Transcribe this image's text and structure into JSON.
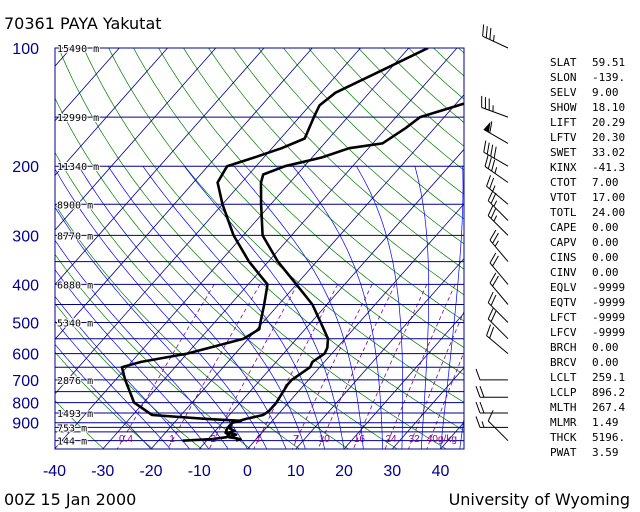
{
  "header": {
    "title": "70361 PAYA Yakutat",
    "date": "00Z 15 Jan 2000",
    "source": "University of Wyoming"
  },
  "colors": {
    "isobar": "#00008b",
    "isotherm": "#00008b",
    "dry_adiabat": "#008000",
    "moist_adiabat": "#0000ff",
    "mixing_ratio": "#8b008b",
    "sounding": "#000000",
    "axis_label": "#00008b"
  },
  "indices": [
    {
      "name": "SLAT",
      "value": "59.51"
    },
    {
      "name": "SLON",
      "value": "-139."
    },
    {
      "name": "SELV",
      "value": "9.00"
    },
    {
      "name": "SHOW",
      "value": "18.10"
    },
    {
      "name": "LIFT",
      "value": "20.29"
    },
    {
      "name": "LFTV",
      "value": "20.30"
    },
    {
      "name": "SWET",
      "value": "33.02"
    },
    {
      "name": "KINX",
      "value": "-41.3"
    },
    {
      "name": "CTOT",
      "value": "7.00"
    },
    {
      "name": "VTOT",
      "value": "17.00"
    },
    {
      "name": "TOTL",
      "value": "24.00"
    },
    {
      "name": "CAPE",
      "value": "0.00"
    },
    {
      "name": "CAPV",
      "value": "0.00"
    },
    {
      "name": "CINS",
      "value": "0.00"
    },
    {
      "name": "CINV",
      "value": "0.00"
    },
    {
      "name": "EQLV",
      "value": "-9999"
    },
    {
      "name": "EQTV",
      "value": "-9999"
    },
    {
      "name": "LFCT",
      "value": "-9999"
    },
    {
      "name": "LFCV",
      "value": "-9999"
    },
    {
      "name": "BRCH",
      "value": "0.00"
    },
    {
      "name": "BRCV",
      "value": "0.00"
    },
    {
      "name": "LCLT",
      "value": "259.1"
    },
    {
      "name": "LCLP",
      "value": "896.2"
    },
    {
      "name": "MLTH",
      "value": "267.4"
    },
    {
      "name": "MLMR",
      "value": "1.49"
    },
    {
      "name": "THCK",
      "value": "5196."
    },
    {
      "name": "PWAT",
      "value": "3.59"
    }
  ],
  "chart_data": {
    "type": "line",
    "chart_kind": "skew-T log-P sounding",
    "title": "70361 PAYA Yakutat",
    "pressure_axis": {
      "unit": "hPa",
      "scale": "log",
      "range": [
        1050,
        100
      ],
      "tick_labels": [
        "100",
        "200",
        "300",
        "400",
        "500",
        "600",
        "700",
        "800",
        "900"
      ]
    },
    "temperature_axis": {
      "unit": "°C",
      "range": [
        -40,
        45
      ],
      "tick_labels": [
        "-40",
        "-30",
        "-20",
        "-10",
        "0",
        "10",
        "20",
        "30",
        "40"
      ]
    },
    "isobar_levels": [
      100,
      150,
      200,
      250,
      300,
      350,
      400,
      450,
      500,
      550,
      600,
      650,
      700,
      750,
      800,
      850,
      900,
      925,
      950,
      1000,
      1050
    ],
    "height_labels": [
      {
        "p": 100,
        "text": "15490 m"
      },
      {
        "p": 150,
        "text": "12990 m"
      },
      {
        "p": 200,
        "text": "11340 m"
      },
      {
        "p": 250,
        "text": "8900 m"
      },
      {
        "p": 300,
        "text": "8770 m"
      },
      {
        "p": 400,
        "text": "6880 m"
      },
      {
        "p": 500,
        "text": "5340 m"
      },
      {
        "p": 700,
        "text": "2876 m"
      },
      {
        "p": 850,
        "text": "1493 m"
      },
      {
        "p": 925,
        "text": "753 m"
      },
      {
        "p": 1000,
        "text": "144 m"
      }
    ],
    "mixing_ratio_labels": [
      {
        "value": 0.4,
        "text": "0.4"
      },
      {
        "value": 1,
        "text": "1"
      },
      {
        "value": 2,
        "text": "2"
      },
      {
        "value": 4,
        "text": "4"
      },
      {
        "value": 7,
        "text": "7"
      },
      {
        "value": 10,
        "text": "10"
      },
      {
        "value": 16,
        "text": "16"
      },
      {
        "value": 24,
        "text": "24"
      },
      {
        "value": 32,
        "text": "32"
      },
      {
        "value": 40,
        "text": "40g/kg"
      }
    ],
    "series": [
      {
        "role": "temperature",
        "points": [
          {
            "p": 1000,
            "t": -3.9
          },
          {
            "p": 990,
            "t": -3.3
          },
          {
            "p": 980,
            "t": -6.0
          },
          {
            "p": 965,
            "t": -5.0
          },
          {
            "p": 955,
            "t": -7.0
          },
          {
            "p": 945,
            "t": -6.0
          },
          {
            "p": 930,
            "t": -7.5
          },
          {
            "p": 900,
            "t": -8.0
          },
          {
            "p": 880,
            "t": -5.8
          },
          {
            "p": 860,
            "t": -3.0
          },
          {
            "p": 840,
            "t": -2.5
          },
          {
            "p": 800,
            "t": -2.5
          },
          {
            "p": 760,
            "t": -3.0
          },
          {
            "p": 720,
            "t": -3.5
          },
          {
            "p": 700,
            "t": -3.5
          },
          {
            "p": 650,
            "t": -2.0
          },
          {
            "p": 630,
            "t": -2.5
          },
          {
            "p": 600,
            "t": -1.5
          },
          {
            "p": 580,
            "t": -2.0
          },
          {
            "p": 550,
            "t": -3.5
          },
          {
            "p": 500,
            "t": -8.0
          },
          {
            "p": 450,
            "t": -13.0
          },
          {
            "p": 400,
            "t": -20.0
          },
          {
            "p": 350,
            "t": -28.0
          },
          {
            "p": 300,
            "t": -36.0
          },
          {
            "p": 250,
            "t": -42.0
          },
          {
            "p": 220,
            "t": -46.0
          },
          {
            "p": 210,
            "t": -47.0
          },
          {
            "p": 200,
            "t": -44.0
          },
          {
            "p": 190,
            "t": -38.0
          },
          {
            "p": 180,
            "t": -34.0
          },
          {
            "p": 175,
            "t": -28.0
          },
          {
            "p": 160,
            "t": -26.0
          },
          {
            "p": 150,
            "t": -25.0
          },
          {
            "p": 138,
            "t": -18.0
          },
          {
            "p": 130,
            "t": -17.0
          },
          {
            "p": 100,
            "t": -8.0
          }
        ]
      },
      {
        "role": "dewpoint",
        "points": [
          {
            "p": 1000,
            "t": -15.0
          },
          {
            "p": 990,
            "t": -9.0
          },
          {
            "p": 980,
            "t": -6.5
          },
          {
            "p": 965,
            "t": -6.5
          },
          {
            "p": 955,
            "t": -7.5
          },
          {
            "p": 930,
            "t": -8.0
          },
          {
            "p": 900,
            "t": -8.0
          },
          {
            "p": 890,
            "t": -6.5
          },
          {
            "p": 880,
            "t": -14.0
          },
          {
            "p": 860,
            "t": -26.0
          },
          {
            "p": 800,
            "t": -32.0
          },
          {
            "p": 700,
            "t": -38.0
          },
          {
            "p": 650,
            "t": -41.0
          },
          {
            "p": 630,
            "t": -38.0
          },
          {
            "p": 600,
            "t": -30.0
          },
          {
            "p": 550,
            "t": -21.0
          },
          {
            "p": 520,
            "t": -19.5
          },
          {
            "p": 500,
            "t": -20.5
          },
          {
            "p": 450,
            "t": -23.0
          },
          {
            "p": 400,
            "t": -26.0
          },
          {
            "p": 350,
            "t": -34.0
          },
          {
            "p": 300,
            "t": -42.0
          },
          {
            "p": 250,
            "t": -50.0
          },
          {
            "p": 220,
            "t": -55.0
          },
          {
            "p": 200,
            "t": -56.0
          },
          {
            "p": 190,
            "t": -52.0
          },
          {
            "p": 180,
            "t": -48.0
          },
          {
            "p": 170,
            "t": -45.0
          },
          {
            "p": 150,
            "t": -47.0
          },
          {
            "p": 140,
            "t": -48.0
          },
          {
            "p": 130,
            "t": -47.0
          },
          {
            "p": 110,
            "t": -40.0
          },
          {
            "p": 100,
            "t": -36.0
          }
        ]
      }
    ],
    "wind_barbs": [
      {
        "p": 100,
        "dir": 295,
        "kt": 35
      },
      {
        "p": 150,
        "dir": 290,
        "kt": 35
      },
      {
        "p": 175,
        "dir": 300,
        "kt": 60
      },
      {
        "p": 200,
        "dir": 300,
        "kt": 40
      },
      {
        "p": 220,
        "dir": 305,
        "kt": 35
      },
      {
        "p": 250,
        "dir": 310,
        "kt": 25
      },
      {
        "p": 275,
        "dir": 315,
        "kt": 25
      },
      {
        "p": 300,
        "dir": 315,
        "kt": 25
      },
      {
        "p": 350,
        "dir": 320,
        "kt": 25
      },
      {
        "p": 400,
        "dir": 320,
        "kt": 20
      },
      {
        "p": 450,
        "dir": 320,
        "kt": 20
      },
      {
        "p": 500,
        "dir": 315,
        "kt": 20
      },
      {
        "p": 550,
        "dir": 315,
        "kt": 20
      },
      {
        "p": 600,
        "dir": 310,
        "kt": 20
      },
      {
        "p": 700,
        "dir": 270,
        "kt": 10
      },
      {
        "p": 775,
        "dir": 270,
        "kt": 20
      },
      {
        "p": 850,
        "dir": 270,
        "kt": 20
      },
      {
        "p": 925,
        "dir": 270,
        "kt": 15
      },
      {
        "p": 1000,
        "dir": 315,
        "kt": 10
      }
    ]
  }
}
